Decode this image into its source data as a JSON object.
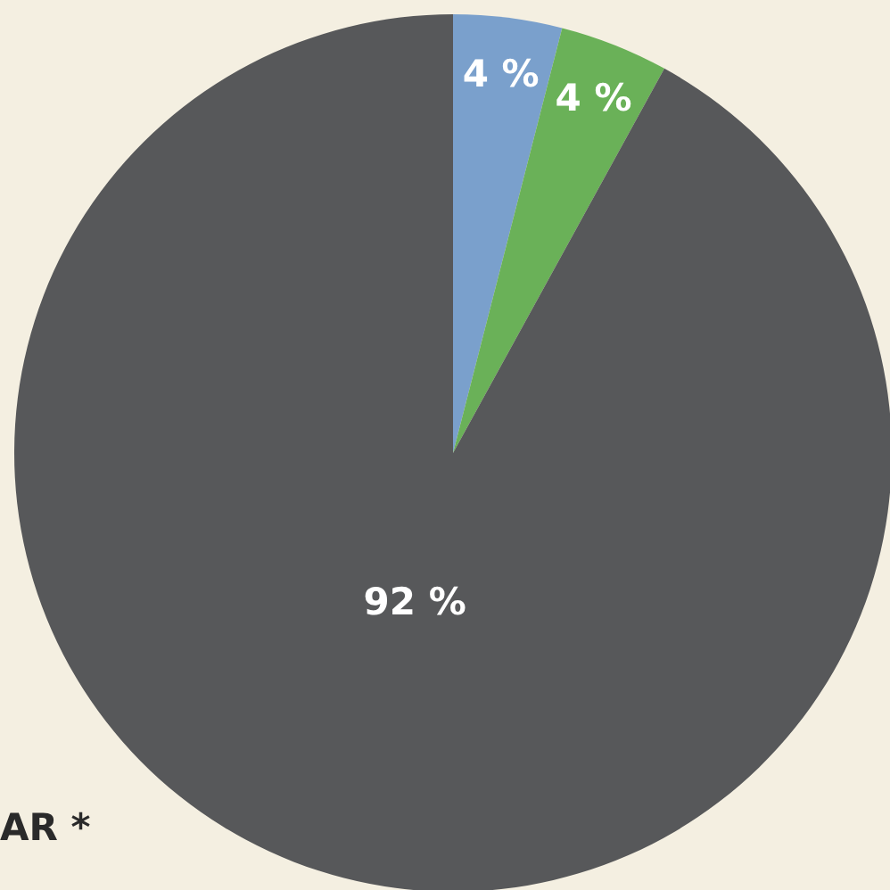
{
  "chart_data": {
    "type": "pie",
    "categories": [
      null,
      null,
      null
    ],
    "values": [
      4,
      4,
      92
    ],
    "colors": [
      "#7aa0cc",
      "#6ab158",
      "#57585a"
    ],
    "value_labels": [
      "4 %",
      "4 %",
      "92 %"
    ],
    "annotations": [
      "AR *"
    ],
    "legend": false
  }
}
